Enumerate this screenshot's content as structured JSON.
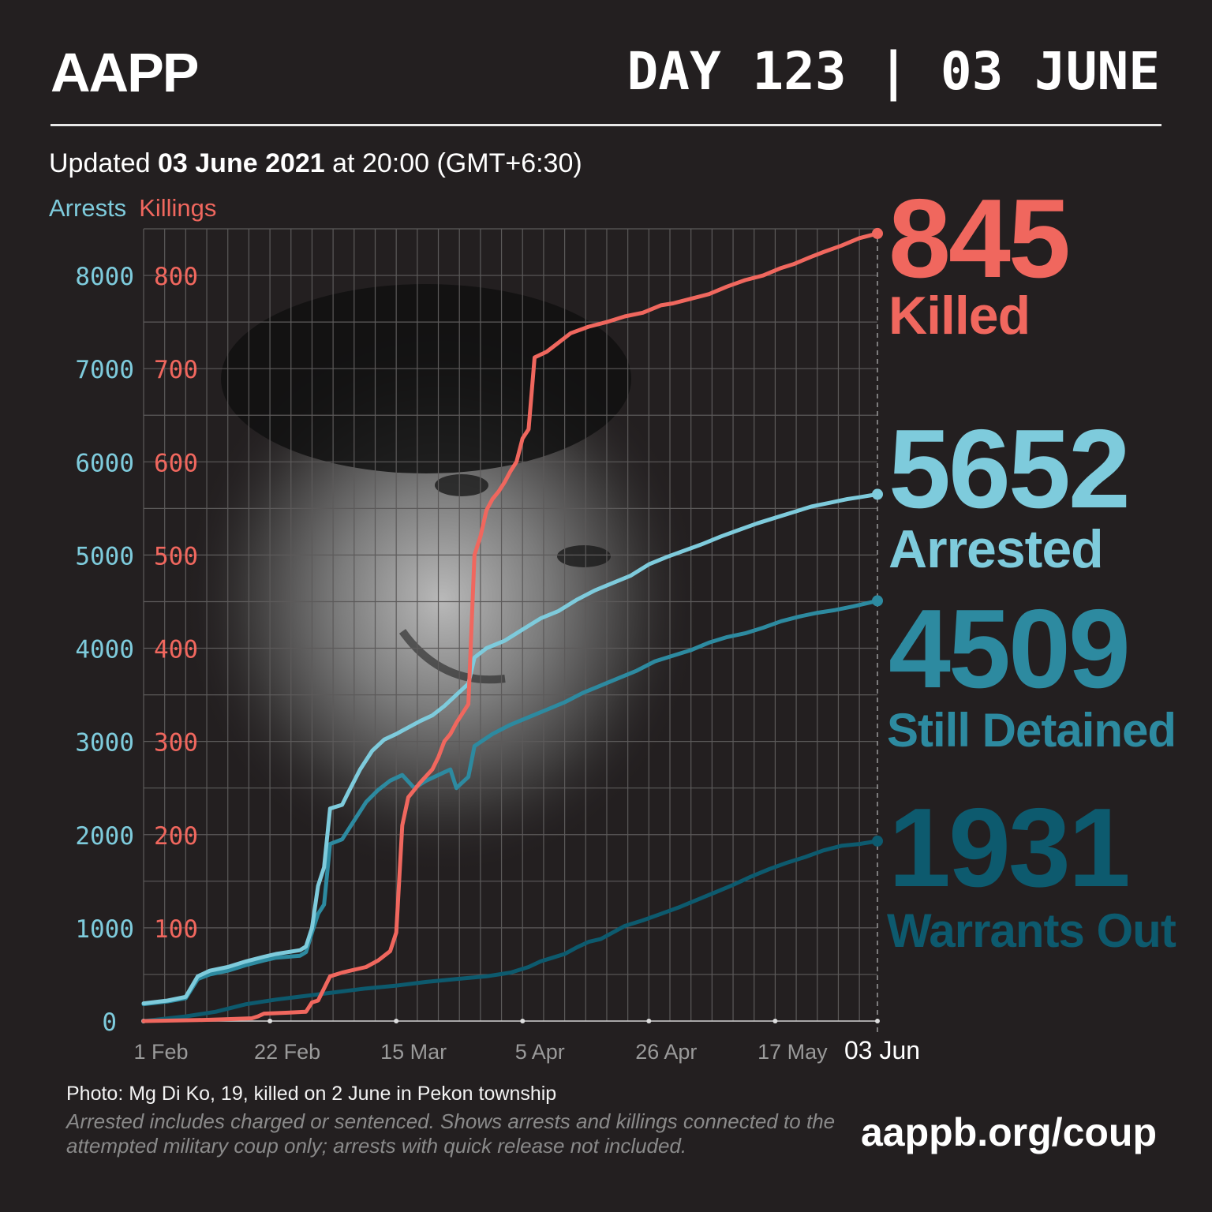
{
  "header": {
    "logo": "AAPP",
    "day_label": "DAY 123 | 03 JUNE"
  },
  "updated": {
    "prefix": "Updated ",
    "date": "03 June 2021",
    "suffix": " at 20:00 (GMT+6:30)"
  },
  "legend": {
    "arrests": "Arrests",
    "killings": "Killings"
  },
  "stats": {
    "killed": {
      "value": "845",
      "label": "Killed"
    },
    "arrested": {
      "value": "5652",
      "label": "Arrested"
    },
    "detained": {
      "value": "4509",
      "label": "Still Detained"
    },
    "warrants": {
      "value": "1931",
      "label": "Warrants Out"
    }
  },
  "footer": {
    "photo_credit": "Photo: Mg Di Ko, 19, killed on 2 June in Pekon township",
    "note": "Arrested includes charged or sentenced. Shows arrests and killings connected to the attempted military coup only; arrests with quick release not included.",
    "url": "aappb.org/coup"
  },
  "colors": {
    "killings": "#f0675e",
    "arrests": "#7ecbdc",
    "detained": "#2d8aa0",
    "warrants": "#0d5a6e",
    "background": "#231f20"
  },
  "chart_data": {
    "type": "line",
    "title": "",
    "xlabel": "",
    "ylabel": "",
    "x_ticks": [
      "1 Feb",
      "22 Feb",
      "15 Mar",
      "5 Apr",
      "26 Apr",
      "17 May",
      "03 Jun"
    ],
    "x_tick_days": [
      0,
      21,
      42,
      63,
      84,
      105,
      122
    ],
    "xlim": [
      0,
      122
    ],
    "y_left": {
      "label": "Arrests",
      "ticks": [
        0,
        1000,
        2000,
        3000,
        4000,
        5000,
        6000,
        7000,
        8000
      ],
      "lim": [
        0,
        8500
      ]
    },
    "y_right": {
      "label": "Killings",
      "ticks": [
        0,
        100,
        200,
        300,
        400,
        500,
        600,
        700,
        800
      ],
      "lim": [
        0,
        850
      ]
    },
    "series": [
      {
        "name": "Killings",
        "axis": "right",
        "color": "#f0675e",
        "points": [
          [
            0,
            0
          ],
          [
            9,
            1
          ],
          [
            14,
            2
          ],
          [
            18,
            3
          ],
          [
            19,
            5
          ],
          [
            20,
            8
          ],
          [
            24,
            9
          ],
          [
            27,
            10
          ],
          [
            28,
            20
          ],
          [
            29,
            22
          ],
          [
            30,
            35
          ],
          [
            31,
            48
          ],
          [
            33,
            52
          ],
          [
            35,
            55
          ],
          [
            37,
            58
          ],
          [
            39,
            65
          ],
          [
            41,
            75
          ],
          [
            42,
            95
          ],
          [
            43,
            210
          ],
          [
            44,
            240
          ],
          [
            46,
            256
          ],
          [
            48,
            270
          ],
          [
            49,
            283
          ],
          [
            50,
            300
          ],
          [
            51,
            308
          ],
          [
            52,
            320
          ],
          [
            53,
            330
          ],
          [
            54,
            340
          ],
          [
            55,
            500
          ],
          [
            56,
            520
          ],
          [
            57,
            548
          ],
          [
            58,
            560
          ],
          [
            59,
            568
          ],
          [
            60,
            578
          ],
          [
            61,
            590
          ],
          [
            62,
            600
          ],
          [
            63,
            625
          ],
          [
            64,
            635
          ],
          [
            65,
            712
          ],
          [
            67,
            718
          ],
          [
            69,
            728
          ],
          [
            71,
            738
          ],
          [
            74,
            745
          ],
          [
            77,
            750
          ],
          [
            80,
            756
          ],
          [
            83,
            760
          ],
          [
            86,
            768
          ],
          [
            88,
            770
          ],
          [
            91,
            775
          ],
          [
            94,
            780
          ],
          [
            97,
            788
          ],
          [
            100,
            795
          ],
          [
            103,
            800
          ],
          [
            106,
            808
          ],
          [
            108,
            812
          ],
          [
            111,
            820
          ],
          [
            113,
            825
          ],
          [
            116,
            832
          ],
          [
            119,
            840
          ],
          [
            122,
            845
          ]
        ]
      },
      {
        "name": "Arrests",
        "axis": "left",
        "color": "#7ecbdc",
        "points": [
          [
            0,
            190
          ],
          [
            4,
            220
          ],
          [
            7,
            260
          ],
          [
            9,
            480
          ],
          [
            11,
            540
          ],
          [
            14,
            580
          ],
          [
            17,
            640
          ],
          [
            20,
            690
          ],
          [
            22,
            720
          ],
          [
            24,
            740
          ],
          [
            26,
            760
          ],
          [
            27,
            800
          ],
          [
            28,
            1000
          ],
          [
            29,
            1450
          ],
          [
            30,
            1650
          ],
          [
            31,
            2280
          ],
          [
            33,
            2320
          ],
          [
            34,
            2450
          ],
          [
            36,
            2700
          ],
          [
            38,
            2900
          ],
          [
            40,
            3020
          ],
          [
            42,
            3080
          ],
          [
            44,
            3150
          ],
          [
            46,
            3220
          ],
          [
            48,
            3280
          ],
          [
            50,
            3380
          ],
          [
            52,
            3500
          ],
          [
            54,
            3620
          ],
          [
            55,
            3900
          ],
          [
            57,
            4000
          ],
          [
            60,
            4080
          ],
          [
            63,
            4200
          ],
          [
            66,
            4320
          ],
          [
            69,
            4400
          ],
          [
            72,
            4520
          ],
          [
            75,
            4620
          ],
          [
            78,
            4700
          ],
          [
            81,
            4780
          ],
          [
            84,
            4900
          ],
          [
            87,
            4980
          ],
          [
            90,
            5050
          ],
          [
            93,
            5120
          ],
          [
            96,
            5200
          ],
          [
            99,
            5270
          ],
          [
            102,
            5340
          ],
          [
            105,
            5400
          ],
          [
            108,
            5460
          ],
          [
            111,
            5520
          ],
          [
            114,
            5560
          ],
          [
            117,
            5600
          ],
          [
            119,
            5620
          ],
          [
            122,
            5652
          ]
        ]
      },
      {
        "name": "Still Detained",
        "axis": "left",
        "color": "#2d8aa0",
        "points": [
          [
            0,
            180
          ],
          [
            4,
            210
          ],
          [
            7,
            245
          ],
          [
            9,
            450
          ],
          [
            11,
            500
          ],
          [
            14,
            540
          ],
          [
            17,
            600
          ],
          [
            20,
            650
          ],
          [
            22,
            680
          ],
          [
            24,
            690
          ],
          [
            26,
            700
          ],
          [
            27,
            740
          ],
          [
            28,
            950
          ],
          [
            29,
            1150
          ],
          [
            30,
            1250
          ],
          [
            31,
            1900
          ],
          [
            33,
            1950
          ],
          [
            35,
            2150
          ],
          [
            37,
            2350
          ],
          [
            39,
            2480
          ],
          [
            41,
            2580
          ],
          [
            43,
            2640
          ],
          [
            45,
            2500
          ],
          [
            47,
            2580
          ],
          [
            49,
            2640
          ],
          [
            51,
            2700
          ],
          [
            52,
            2500
          ],
          [
            53,
            2560
          ],
          [
            54,
            2620
          ],
          [
            55,
            2950
          ],
          [
            58,
            3080
          ],
          [
            61,
            3180
          ],
          [
            64,
            3260
          ],
          [
            67,
            3340
          ],
          [
            70,
            3420
          ],
          [
            73,
            3520
          ],
          [
            76,
            3600
          ],
          [
            79,
            3680
          ],
          [
            82,
            3760
          ],
          [
            85,
            3860
          ],
          [
            88,
            3920
          ],
          [
            91,
            3980
          ],
          [
            94,
            4060
          ],
          [
            97,
            4120
          ],
          [
            100,
            4160
          ],
          [
            103,
            4220
          ],
          [
            106,
            4290
          ],
          [
            109,
            4340
          ],
          [
            112,
            4380
          ],
          [
            115,
            4410
          ],
          [
            118,
            4450
          ],
          [
            122,
            4509
          ]
        ]
      },
      {
        "name": "Warrants Out",
        "axis": "left",
        "color": "#0d5a6e",
        "points": [
          [
            0,
            0
          ],
          [
            7,
            50
          ],
          [
            12,
            100
          ],
          [
            17,
            180
          ],
          [
            22,
            230
          ],
          [
            27,
            270
          ],
          [
            32,
            310
          ],
          [
            37,
            350
          ],
          [
            42,
            380
          ],
          [
            47,
            420
          ],
          [
            52,
            450
          ],
          [
            57,
            480
          ],
          [
            61,
            520
          ],
          [
            64,
            580
          ],
          [
            66,
            640
          ],
          [
            68,
            680
          ],
          [
            70,
            720
          ],
          [
            72,
            790
          ],
          [
            74,
            850
          ],
          [
            76,
            880
          ],
          [
            78,
            950
          ],
          [
            80,
            1020
          ],
          [
            83,
            1080
          ],
          [
            86,
            1150
          ],
          [
            89,
            1220
          ],
          [
            92,
            1300
          ],
          [
            95,
            1380
          ],
          [
            98,
            1460
          ],
          [
            101,
            1550
          ],
          [
            104,
            1630
          ],
          [
            107,
            1700
          ],
          [
            110,
            1760
          ],
          [
            113,
            1830
          ],
          [
            116,
            1880
          ],
          [
            119,
            1900
          ],
          [
            122,
            1931
          ]
        ]
      }
    ],
    "end_markers": true
  }
}
